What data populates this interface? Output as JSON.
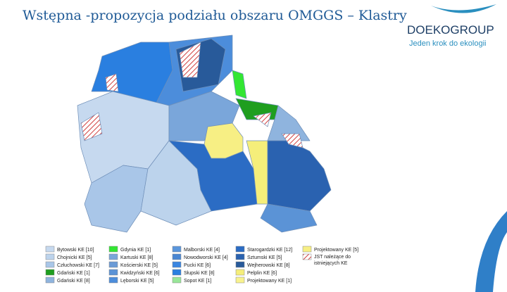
{
  "header": {
    "title": "Wstępna -propozycja podziału obszaru OMGGS – Klastry"
  },
  "logo": {
    "name": "DOEKOGROUP",
    "tagline": "Jeden krok do ekologii"
  },
  "legend": {
    "columns": [
      [
        {
          "label": "Bytowski KE [10]",
          "color": "#c6d9ef"
        },
        {
          "label": "Chojnicki KE [5]",
          "color": "#bcd3ec"
        },
        {
          "label": "Człuchowski KE [7]",
          "color": "#a9c6e8"
        },
        {
          "label": "Gdański KE [1]",
          "color": "#1f9e1f"
        },
        {
          "label": "Gdański KE [8]",
          "color": "#8fb4de"
        }
      ],
      [
        {
          "label": "Gdynia KE [1]",
          "color": "#33e633"
        },
        {
          "label": "Kartuski KE [8]",
          "color": "#7aa6da"
        },
        {
          "label": "Kościerski KE [5]",
          "color": "#6b9bd6"
        },
        {
          "label": "Kwidzyński KE [6]",
          "color": "#5b93d6"
        },
        {
          "label": "Lęborski KE [5]",
          "color": "#4c8ddb"
        }
      ],
      [
        {
          "label": "Malborski KE [4]",
          "color": "#5a96dc"
        },
        {
          "label": "Nowodworski KE [4]",
          "color": "#4a87d2"
        },
        {
          "label": "Pucki KE [6]",
          "color": "#3a86e0"
        },
        {
          "label": "Słupski KE [8]",
          "color": "#2a7fe0"
        },
        {
          "label": "Sopot KE [1]",
          "color": "#99e699"
        }
      ],
      [
        {
          "label": "Starogardzki KE [12]",
          "color": "#2b6cc4"
        },
        {
          "label": "Sztumski KE [5]",
          "color": "#2a62b0"
        },
        {
          "label": "Wejherowski KE [8]",
          "color": "#285a9a"
        },
        {
          "label": "Pelplin KE [6]",
          "color": "#f5ee7a"
        },
        {
          "label": "Projektowany KE [1]",
          "color": "#f8f28e"
        }
      ],
      [
        {
          "label": "Projektowany KE [5]",
          "color": "#f7ef84"
        },
        {
          "label": "JST należące do istniejących KE",
          "color": "#d04040",
          "hatched": true
        }
      ]
    ]
  }
}
